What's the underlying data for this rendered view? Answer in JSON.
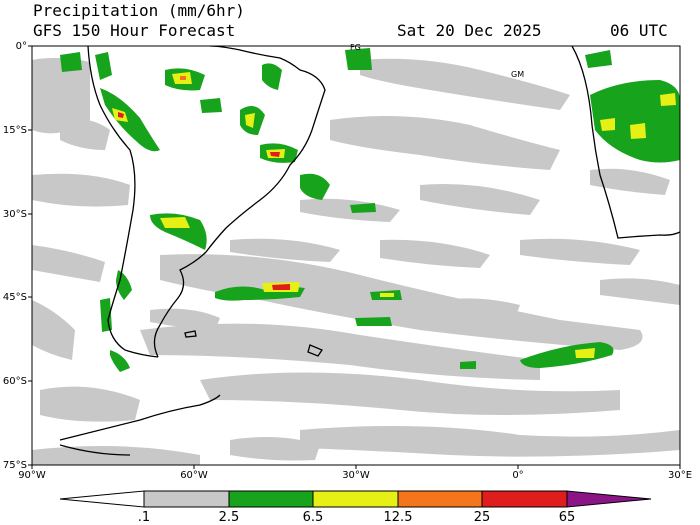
{
  "title": {
    "line1": "Precipitation (mm/6hr)",
    "line2": "GFS 150 Hour Forecast",
    "date": "Sat 20 Dec 2025",
    "time": "06 UTC"
  },
  "map": {
    "lon_range": [
      -90,
      30
    ],
    "lat_range": [
      -75,
      0
    ],
    "lat_labels": [
      "0°",
      "15°S",
      "30°S",
      "45°S",
      "60°S",
      "75°S"
    ],
    "lon_labels": [
      "90°W",
      "60°W",
      "30°W",
      "0°",
      "30°E"
    ],
    "places": [
      "FG",
      "GM"
    ],
    "colors": {
      "light": "#c8c8c8",
      "green": "#17a31c",
      "yellow": "#e6f015",
      "orange": "#f5751b",
      "red": "#e01d1d",
      "purple": "#8b1587",
      "coast": "#000000"
    }
  },
  "colorbar": {
    "labels": [
      ".1",
      "2.5",
      "6.5",
      "12.5",
      "25",
      "65"
    ],
    "colors": [
      "#ffffff",
      "#c8c8c8",
      "#17a31c",
      "#e6f015",
      "#f5751b",
      "#e01d1d",
      "#8b1587"
    ]
  }
}
